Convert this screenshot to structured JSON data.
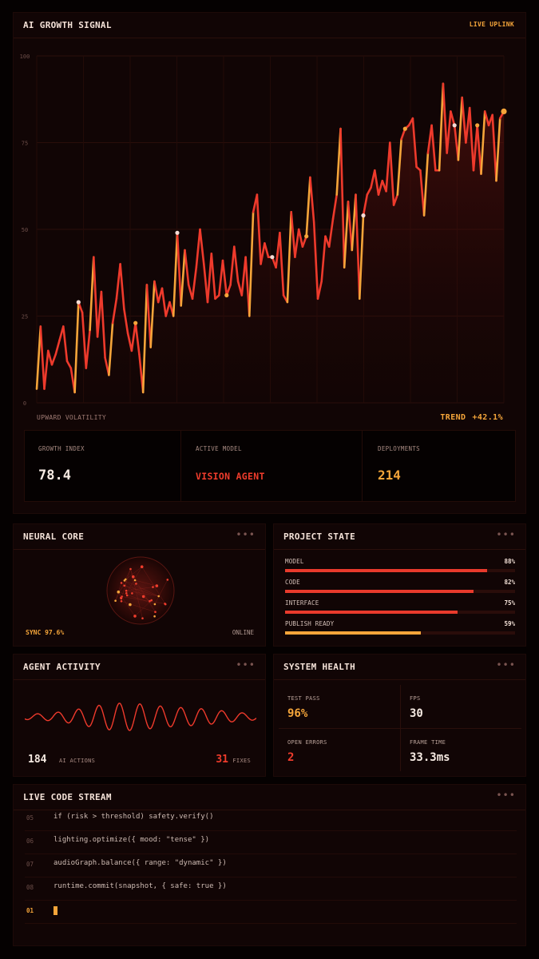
{
  "growth": {
    "title": "AI GROWTH SIGNAL",
    "badge": "LIVE UPLINK",
    "subtitle": "UPWARD VOLATILITY",
    "trend_label": "TREND",
    "trend_value": "+42.1%",
    "metrics": [
      {
        "label": "GROWTH INDEX",
        "value": "78.4"
      },
      {
        "label": "ACTIVE MODEL",
        "value": "VISION AGENT"
      },
      {
        "label": "DEPLOYMENTS",
        "value": "214"
      }
    ]
  },
  "chart_data": {
    "type": "line",
    "ylim": [
      0,
      100
    ],
    "yticks": [
      "0",
      "25",
      "50",
      "75",
      "100"
    ],
    "grid": true,
    "colors": {
      "line": "#ee3a2c",
      "highlight": "#f5a53a",
      "marker_white": "#f4dcd6",
      "marker_orange": "#f5a53a"
    },
    "series": [
      {
        "values": [
          4,
          22,
          4,
          15,
          11,
          14,
          18,
          22,
          12,
          10,
          3,
          29,
          26,
          10,
          21,
          42,
          19,
          32,
          13,
          8,
          23,
          30,
          40,
          27,
          20,
          15,
          23,
          14,
          3,
          34,
          16,
          35,
          29,
          33,
          25,
          29,
          25,
          49,
          28,
          44,
          34,
          30,
          39,
          50,
          40,
          29,
          43,
          30,
          31,
          41,
          31,
          34,
          45,
          35,
          31,
          42,
          25,
          55,
          60,
          40,
          46,
          42,
          42,
          39,
          49,
          31,
          29,
          55,
          42,
          50,
          45,
          48,
          65,
          52,
          30,
          35,
          48,
          45,
          53,
          60,
          79,
          39,
          58,
          44,
          60,
          30,
          54,
          60,
          62,
          67,
          60,
          64,
          61,
          75,
          57,
          60,
          76,
          79,
          80,
          82,
          68,
          67,
          54,
          72,
          80,
          67,
          67,
          92,
          72,
          84,
          80,
          70,
          88,
          75,
          85,
          67,
          80,
          66,
          84,
          80,
          83,
          64,
          82,
          84
        ]
      }
    ],
    "markers": [
      {
        "index": 11,
        "color": "white"
      },
      {
        "index": 26,
        "color": "orange"
      },
      {
        "index": 37,
        "color": "white"
      },
      {
        "index": 50,
        "color": "orange"
      },
      {
        "index": 62,
        "color": "white"
      },
      {
        "index": 71,
        "color": "orange"
      },
      {
        "index": 86,
        "color": "white"
      },
      {
        "index": 97,
        "color": "orange"
      },
      {
        "index": 110,
        "color": "white"
      },
      {
        "index": 116,
        "color": "orange"
      },
      {
        "index": 123,
        "color": "orange"
      }
    ]
  },
  "neural": {
    "title": "NEURAL CORE",
    "sync": "SYNC 97.6%",
    "status": "ONLINE"
  },
  "project": {
    "title": "PROJECT STATE",
    "items": [
      {
        "label": "MODEL",
        "pct": "88%",
        "value": 88,
        "color": "red"
      },
      {
        "label": "CODE",
        "pct": "82%",
        "value": 82,
        "color": "red"
      },
      {
        "label": "INTERFACE",
        "pct": "75%",
        "value": 75,
        "color": "red"
      },
      {
        "label": "PUBLISH READY",
        "pct": "59%",
        "value": 59,
        "color": "orange"
      }
    ]
  },
  "agent": {
    "title": "AGENT ACTIVITY",
    "actions_count": "184",
    "actions_label": "AI ACTIONS",
    "fixes_count": "31",
    "fixes_label": "FIXES"
  },
  "health": {
    "title": "SYSTEM HEALTH",
    "cells": [
      {
        "label": "TEST PASS",
        "value": "96%"
      },
      {
        "label": "FPS",
        "value": "30"
      },
      {
        "label": "OPEN ERRORS",
        "value": "2"
      },
      {
        "label": "FRAME TIME",
        "value": "33.3ms"
      }
    ]
  },
  "code": {
    "title": "LIVE CODE STREAM",
    "lines": [
      {
        "no": "05",
        "text": "if (risk > threshold) safety.verify()"
      },
      {
        "no": "06",
        "text": "lighting.optimize({ mood: \"tense\" })"
      },
      {
        "no": "07",
        "text": "audioGraph.balance({ range: \"dynamic\" })"
      },
      {
        "no": "08",
        "text": "runtime.commit(snapshot, { safe: true })"
      },
      {
        "no": "01",
        "text": ""
      }
    ]
  },
  "ui": {
    "more_icon": "more-dots-icon"
  }
}
